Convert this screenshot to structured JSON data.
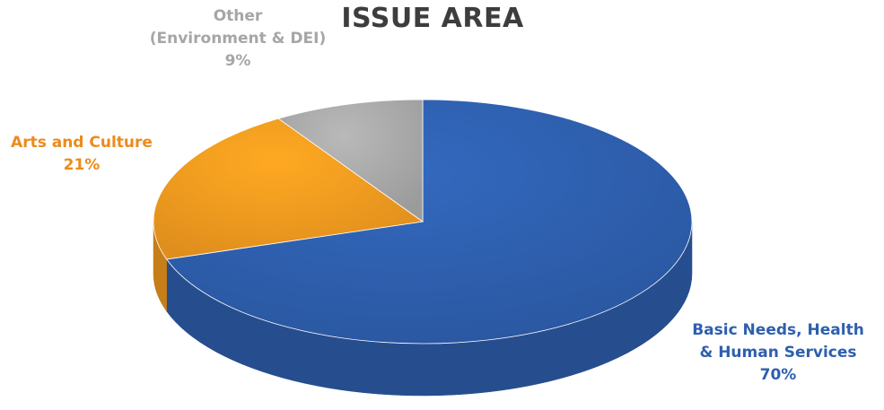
{
  "chart_data": {
    "type": "pie",
    "title": "ISSUE AREA",
    "slices": [
      {
        "name": "Basic Needs, Health & Human Services",
        "label_lines": [
          "Basic Needs, Health",
          "& Human Services"
        ],
        "value": 70,
        "value_label": "70%",
        "color": "#2e5fae",
        "label_color": "#2e5fae"
      },
      {
        "name": "Arts and Culture",
        "label_lines": [
          "Arts and Culture"
        ],
        "value": 21,
        "value_label": "21%",
        "color": "#f29a1f",
        "label_color": "#ed8a1c"
      },
      {
        "name": "Other (Environment & DEI)",
        "label_lines": [
          "Other",
          "(Environment & DEI)"
        ],
        "value": 9,
        "value_label": "9%",
        "color": "#a8a8a8",
        "label_color": "#a6a6a6"
      }
    ],
    "style": "3d",
    "legend": "none"
  }
}
